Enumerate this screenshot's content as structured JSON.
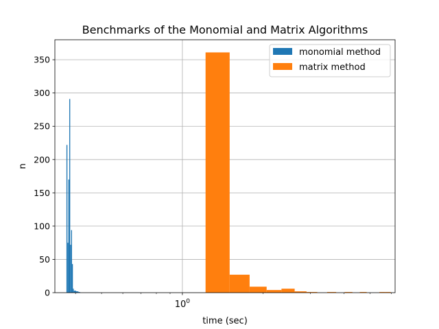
{
  "chart_data": {
    "type": "bar",
    "title": "Benchmarks of the Monomial and Matrix Algorithms",
    "xlabel": "time (sec)",
    "ylabel": "n",
    "xscale": "log",
    "xlim": [
      0.335,
      6.2
    ],
    "ylim": [
      0,
      380
    ],
    "xticks": [
      {
        "value": 1,
        "label": "10^0"
      }
    ],
    "yticks": [
      0,
      50,
      100,
      150,
      200,
      250,
      300,
      350
    ],
    "grid": true,
    "legend_position": "top-right",
    "series": [
      {
        "name": "monomial method",
        "color": "#1f77b4",
        "bins": [
          {
            "x0": 0.37,
            "x1": 0.373,
            "count": 222
          },
          {
            "x0": 0.373,
            "x1": 0.376,
            "count": 75
          },
          {
            "x0": 0.376,
            "x1": 0.379,
            "count": 170
          },
          {
            "x0": 0.379,
            "x1": 0.382,
            "count": 291
          },
          {
            "x0": 0.382,
            "x1": 0.385,
            "count": 72
          },
          {
            "x0": 0.385,
            "x1": 0.388,
            "count": 94
          },
          {
            "x0": 0.388,
            "x1": 0.391,
            "count": 43
          },
          {
            "x0": 0.391,
            "x1": 0.394,
            "count": 6
          },
          {
            "x0": 0.394,
            "x1": 0.398,
            "count": 3
          },
          {
            "x0": 0.398,
            "x1": 0.402,
            "count": 3
          },
          {
            "x0": 0.402,
            "x1": 0.406,
            "count": 2
          },
          {
            "x0": 0.406,
            "x1": 0.41,
            "count": 2
          },
          {
            "x0": 0.41,
            "x1": 0.416,
            "count": 1
          }
        ]
      },
      {
        "name": "matrix method",
        "color": "#ff7f0e",
        "bins": [
          {
            "x0": 1.22,
            "x1": 1.5,
            "count": 361
          },
          {
            "x0": 1.5,
            "x1": 1.78,
            "count": 27
          },
          {
            "x0": 1.78,
            "x1": 2.06,
            "count": 9
          },
          {
            "x0": 2.06,
            "x1": 2.34,
            "count": 4
          },
          {
            "x0": 2.34,
            "x1": 2.62,
            "count": 6
          },
          {
            "x0": 2.62,
            "x1": 2.9,
            "count": 2
          },
          {
            "x0": 2.9,
            "x1": 3.18,
            "count": 1
          },
          {
            "x0": 3.18,
            "x1": 3.46,
            "count": 0
          },
          {
            "x0": 3.46,
            "x1": 3.74,
            "count": 1
          },
          {
            "x0": 3.74,
            "x1": 4.02,
            "count": 0
          },
          {
            "x0": 4.02,
            "x1": 4.3,
            "count": 1
          },
          {
            "x0": 4.3,
            "x1": 4.58,
            "count": 0
          },
          {
            "x0": 4.58,
            "x1": 4.86,
            "count": 1
          },
          {
            "x0": 4.86,
            "x1": 5.14,
            "count": 0
          },
          {
            "x0": 5.14,
            "x1": 5.42,
            "count": 0
          },
          {
            "x0": 5.42,
            "x1": 5.7,
            "count": 1
          },
          {
            "x0": 5.7,
            "x1": 5.98,
            "count": 1
          }
        ]
      }
    ]
  }
}
